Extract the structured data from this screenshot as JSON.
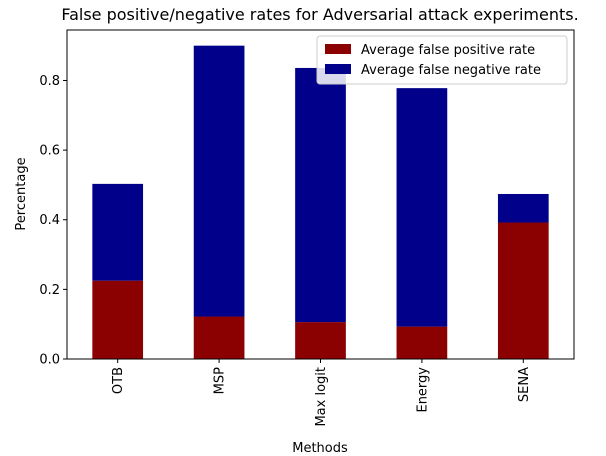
{
  "chart_data": {
    "type": "bar",
    "stacked": true,
    "title": "False positive/negative rates for Adversarial attack experiments.",
    "xlabel": "Methods",
    "ylabel": "Percentage",
    "categories": [
      "OTB",
      "MSP",
      "Max logit",
      "Energy",
      "SENA"
    ],
    "series": [
      {
        "name": "Average false positive rate",
        "color": "#8b0000",
        "values": [
          0.225,
          0.122,
          0.106,
          0.093,
          0.392
        ]
      },
      {
        "name": "Average false negative rate",
        "color": "#00008b",
        "values": [
          0.278,
          0.778,
          0.73,
          0.685,
          0.082
        ]
      }
    ],
    "ylim": [
      0,
      0.945
    ],
    "yticks": [
      0.0,
      0.2,
      0.4,
      0.6,
      0.8
    ],
    "ytick_labels": [
      "0.0",
      "0.2",
      "0.4",
      "0.6",
      "0.8"
    ],
    "grid": false,
    "legend_position": "top-right"
  }
}
